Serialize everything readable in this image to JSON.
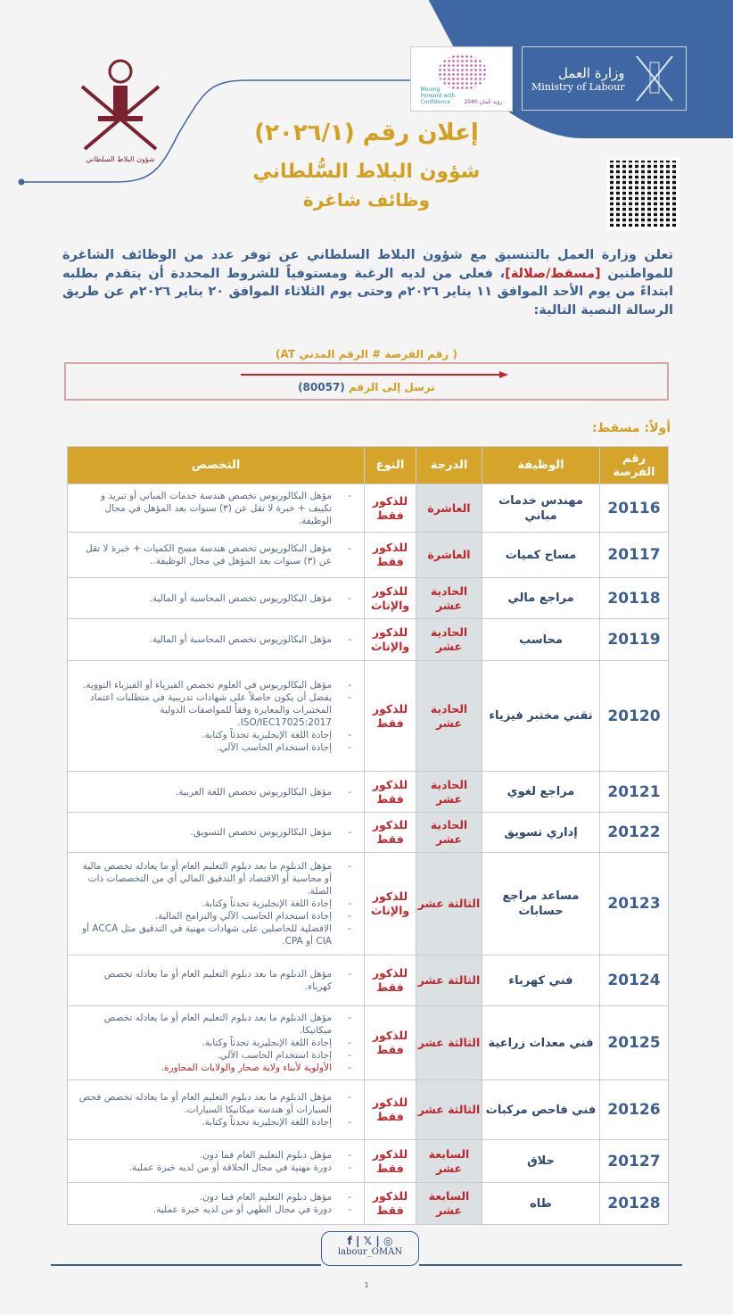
{
  "header": {
    "ministry_ar": "وزارة العمل",
    "ministry_en": "Ministry of Labour",
    "vision_ar": "رؤية عُمان 2040",
    "vision_en": "Moving Forward with Confidence",
    "emblem_caption": "شؤون البلاط السلطاني",
    "announcement_title": "إعلان رقم (٢٠٢٦/١)",
    "subtitle1": "شؤون البلاط السُّلطاني",
    "subtitle2": "وظائف شاغرة"
  },
  "intro": {
    "part1": "تعلن وزارة العمل بالتنسيق مع شؤون البلاط السلطاني عن توفر عدد من الوظائف الشاغرة للمواطنين ",
    "highlight": "[مسقط/صلالة]",
    "part2": "، فعلى من لديه الرغبة ومستوفياً للشروط المحددة أن يتقدم بطلبه ابتداءً من يوم الأحد الموافق ١١ يناير ٢٠٢٦م وحتى يوم الثلاثاء الموافق ٢٠ يناير ٢٠٢٦م عن طريق الرسالة النصية التالية:"
  },
  "sms": {
    "format": "( رقم الفرصة # الرقم المدني AT)",
    "send_to_prefix": "ترسل إلى الرقم ",
    "send_to_number": "(80057)"
  },
  "section_title": "أولاً: مسقط:",
  "table": {
    "headers": [
      "رقم الفرصة",
      "الوظيفة",
      "الدرجة",
      "النوع",
      "التخصص"
    ],
    "rows": [
      {
        "num": "20116",
        "job": "مهندس خدمات مباني",
        "grade": "العاشرة",
        "type": "للذكور فقط",
        "spec": [
          "مؤهل البكالوريوس تخصص هندسة خدمات المباني أو تبريد و تكييف + خبرة لا تقل عن (٣) سنوات بعد المؤهل في مجال الوظيفة."
        ]
      },
      {
        "num": "20117",
        "job": "مساح كميات",
        "grade": "العاشرة",
        "type": "للذكور فقط",
        "spec": [
          "مؤهل البكالوريوس تخصص هندسة مسح الكميات + خبرة لا تقل عن (٣) سنوات بعد المؤهل في مجال الوظيفة.."
        ]
      },
      {
        "num": "20118",
        "job": "مراجع مالي",
        "grade": "الحادية عشر",
        "type": "للذكور والإناث",
        "spec": [
          "مؤهل البكالوريوس تخصص المحاسبة أو المالية."
        ]
      },
      {
        "num": "20119",
        "job": "محاسب",
        "grade": "الحادية عشر",
        "type": "للذكور والإناث",
        "spec": [
          "مؤهل البكالوريوس تخصص المحاسبة أو المالية."
        ]
      },
      {
        "num": "20120",
        "job": "تقني مختبر فيزياء",
        "grade": "الحادية عشر",
        "type": "للذكور فقط",
        "spec": [
          "مؤهل البكالوريوس في العلوم تخصص الفيزياء أو الفيزياء النووية.",
          "يفضل أن يكون حاصلاً على شهادات تدريبية في متطلبات اعتماد المختبرات والمعايرة وفقاً للمواصفات الدولية ISO/IEC17025:2017.",
          "إجادة اللغة الإنجليزية تحدثاً وكتابة.",
          "إجادة استخدام الحاسب الآلي."
        ]
      },
      {
        "num": "20121",
        "job": "مراجع لغوي",
        "grade": "الحادية عشر",
        "type": "للذكور فقط",
        "spec": [
          "مؤهل البكالوريوس تخصص اللغة العربية."
        ]
      },
      {
        "num": "20122",
        "job": "إداري تسويق",
        "grade": "الحادية عشر",
        "type": "للذكور فقط",
        "spec": [
          "مؤهل البكالوريوس تخصص التسويق."
        ]
      },
      {
        "num": "20123",
        "job": "مساعد مراجع حسابات",
        "grade": "الثالثة عشر",
        "type": "للذكور والإناث",
        "spec": [
          "مؤهل الدبلوم ما بعد دبلوم التعليم العام أو ما يعادله تخصص مالية أو محاسبة أو الاقتصاد أو التدقيق المالي أي من التخصصات ذات الصلة.",
          "إجادة اللغة الإنجليزية تحدثاً وكتابة.",
          "إجادة استخدام الحاسب الآلي والبرامج المالية.",
          "الافضلية للحاصلين على شهادات مهنية في التدقيق مثل ACCA أو CIA أو CPA."
        ]
      },
      {
        "num": "20124",
        "job": "فني كهرباء",
        "grade": "الثالثة عشر",
        "type": "للذكور فقط",
        "spec": [
          "مؤهل الدبلوم ما بعد دبلوم التعليم العام أو ما يعادله تخصص كهرباء."
        ]
      },
      {
        "num": "20125",
        "job": "فني معدات زراعية",
        "grade": "الثالثة عشر",
        "type": "للذكور فقط",
        "spec": [
          "مؤهل الدبلوم ما بعد دبلوم التعليم العام أو ما يعادله تخصص ميكانيكا.",
          "إجادة اللغة الإنجليزية تحدثاً وكتابة.",
          "إجادة استخدام الحاسب الآلي."
        ],
        "spec_red": "الأولوية لأبناء ولاية صحار والولايات المجاورة."
      },
      {
        "num": "20126",
        "job": "فني فاحص مركبات",
        "grade": "الثالثة عشر",
        "type": "للذكور فقط",
        "spec": [
          "مؤهل الدبلوم ما بعد دبلوم التعليم العام أو ما يعادله تخصص فحص السيارات أو هندسة ميكانيكا السيارات.",
          "إجادة اللغة الإنجليزية تحدثاً وكتابة."
        ]
      },
      {
        "num": "20127",
        "job": "حلاق",
        "grade": "السابعة عشر",
        "type": "للذكور فقط",
        "spec": [
          "مؤهل دبلوم التعليم العام فما دون.",
          "دورة مهنية في مجال الحلاقة أو من لديه خبرة عملية."
        ]
      },
      {
        "num": "20128",
        "job": "طاه",
        "grade": "السابعة عشر",
        "type": "للذكور فقط",
        "spec": [
          "مؤهل دبلوم التعليم العام فما دون.",
          "دورة في مجال الطهي أو من لديه خبرة عملية."
        ]
      }
    ]
  },
  "footer": {
    "social_handle": "labour_OMAN",
    "icons": [
      "facebook-icon",
      "x-icon",
      "instagram-icon"
    ],
    "page_number": "1"
  },
  "colors": {
    "blue": "#3f67a3",
    "gold": "#d4a020",
    "red": "#c0272d"
  }
}
